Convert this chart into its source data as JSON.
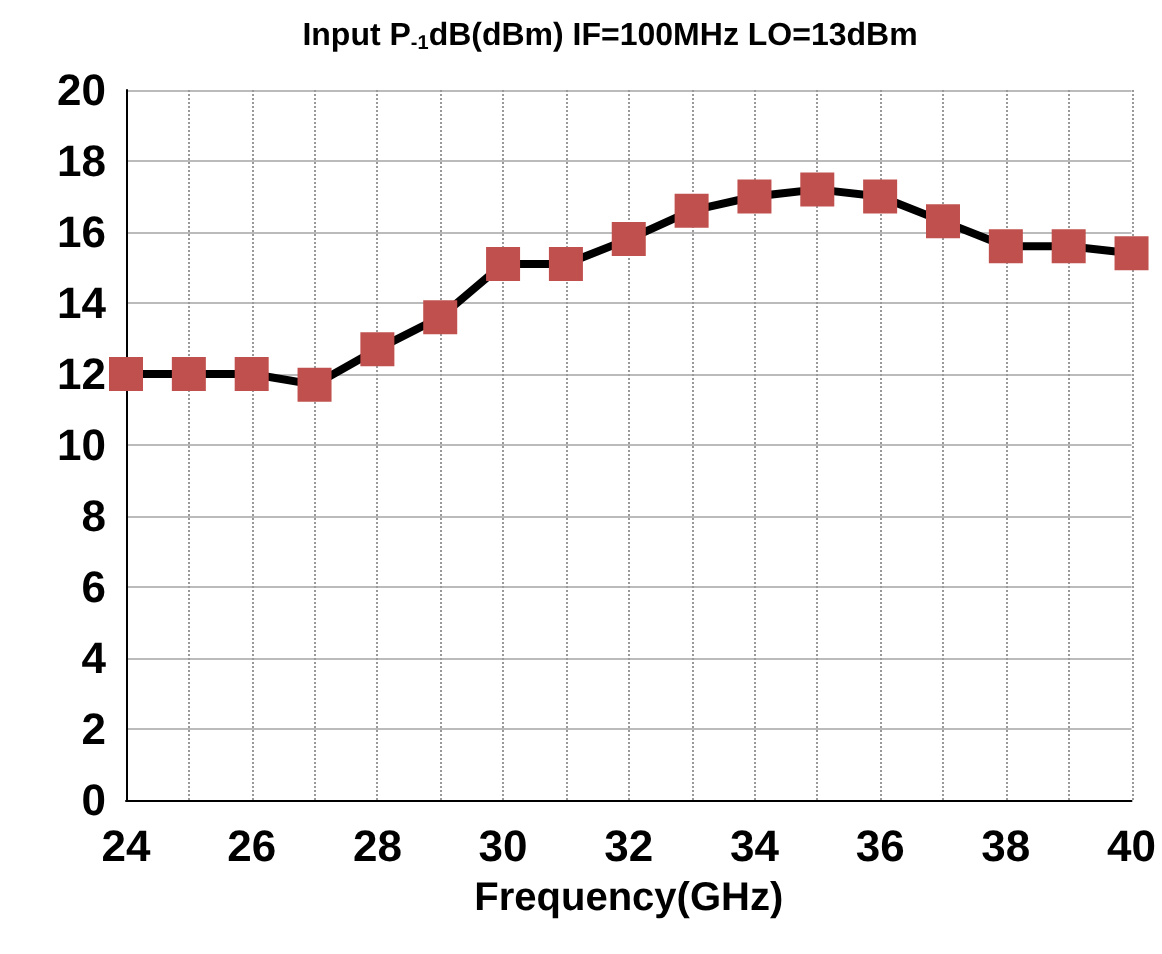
{
  "chart_data": {
    "type": "line",
    "title": "Input P$_{-1}$dB(dBm) IF=100MHz LO=13dBm",
    "xlabel": "Frequency(GHz)",
    "x": [
      24,
      25,
      26,
      27,
      28,
      29,
      30,
      31,
      32,
      33,
      34,
      35,
      36,
      37,
      38,
      39,
      40
    ],
    "series": [
      {
        "color": "#c0504d",
        "values": [
          12.0,
          12.0,
          12.0,
          11.7,
          12.7,
          13.6,
          15.1,
          15.1,
          15.8,
          16.6,
          17.0,
          17.2,
          17.0,
          16.3,
          15.6,
          15.6,
          15.4
        ]
      }
    ],
    "xlim": [
      24,
      40
    ],
    "xticks": [
      24,
      26,
      28,
      30,
      32,
      34,
      36,
      38,
      40
    ],
    "ylim": [
      0,
      20
    ],
    "yticks": [
      0,
      2,
      4,
      6,
      8,
      10,
      12,
      14,
      16,
      18,
      20
    ],
    "grid": true,
    "marker": "square",
    "line_style": "solid"
  }
}
